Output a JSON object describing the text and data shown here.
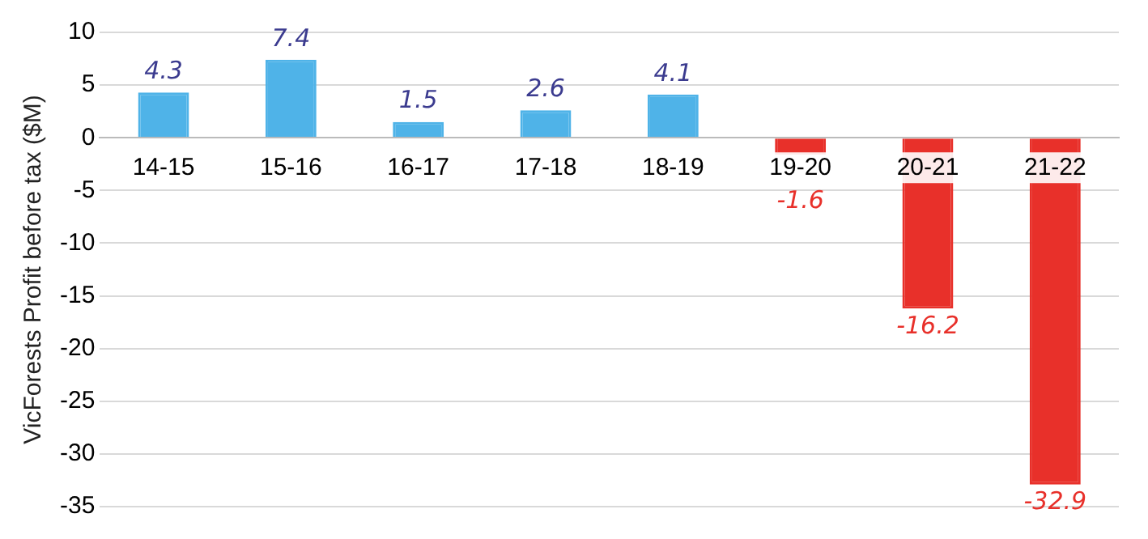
{
  "chart_data": {
    "type": "bar",
    "ylabel": "VicForests Profit before tax ($M)",
    "categories": [
      "14-15",
      "15-16",
      "16-17",
      "17-18",
      "18-19",
      "19-20",
      "20-21",
      "21-22"
    ],
    "values": [
      4.3,
      7.4,
      1.5,
      2.6,
      4.1,
      -1.6,
      -16.2,
      -32.9
    ],
    "colors": [
      "#4fb3e8",
      "#4fb3e8",
      "#4fb3e8",
      "#4fb3e8",
      "#4fb3e8",
      "#e8302a",
      "#e8302a",
      "#e8302a"
    ],
    "ylim": [
      -35,
      10
    ],
    "yticks": [
      -35,
      -30,
      -25,
      -20,
      -15,
      -10,
      -5,
      0,
      5,
      10
    ],
    "grid": "y",
    "data_labels": true
  }
}
